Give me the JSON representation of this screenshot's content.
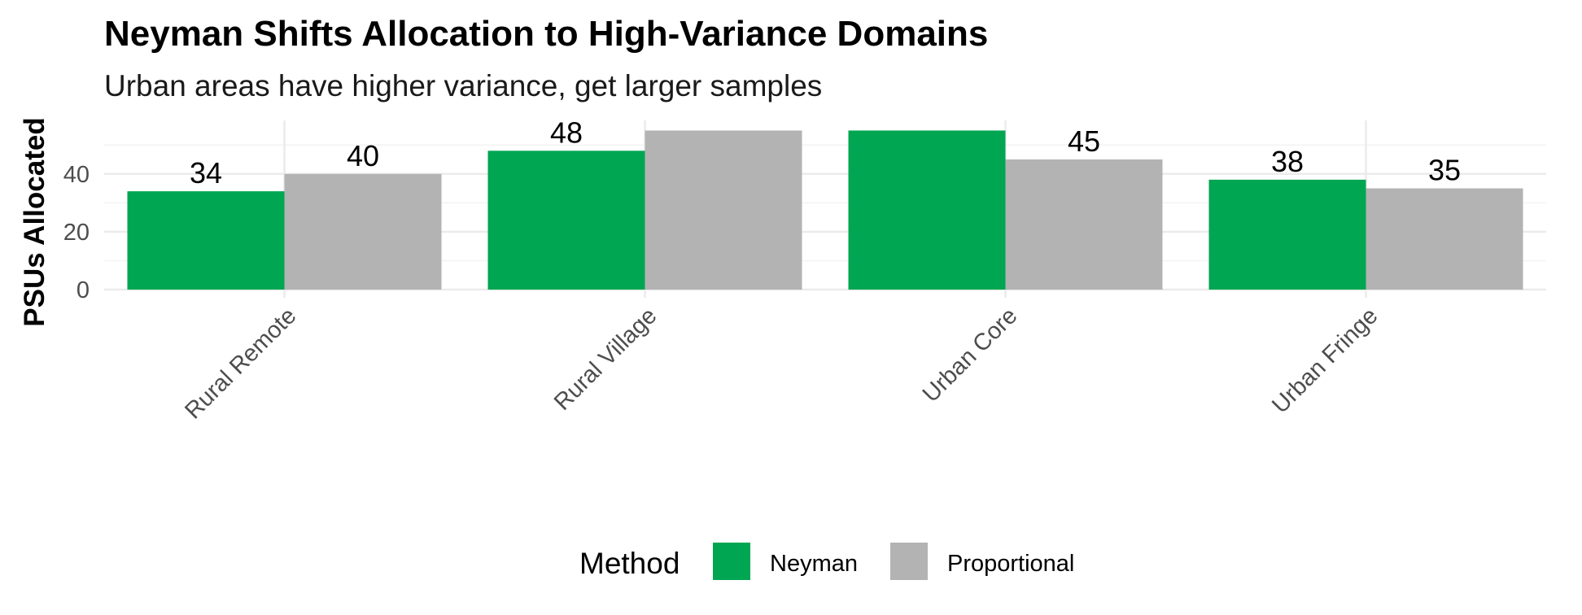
{
  "chart_data": {
    "type": "bar",
    "title": "Neyman Shifts Allocation to High-Variance Domains",
    "subtitle": "Urban areas have higher variance, get larger samples",
    "xlabel": "",
    "ylabel": "PSUs Allocated",
    "categories": [
      "Rural Remote",
      "Rural Village",
      "Urban Core",
      "Urban Fringe"
    ],
    "series": [
      {
        "name": "Neyman",
        "color": "#00a651",
        "values": [
          34,
          48,
          55,
          38
        ],
        "labels": [
          "34",
          "48",
          "",
          "38"
        ]
      },
      {
        "name": "Proportional",
        "color": "#b3b3b3",
        "values": [
          40,
          55,
          45,
          35
        ],
        "labels": [
          "40",
          "",
          "45",
          "35"
        ]
      }
    ],
    "yticks": [
      0,
      20,
      40
    ],
    "ytick_labels": [
      "0",
      "20",
      "40"
    ],
    "ylim": [
      0,
      58.5
    ],
    "grid": true,
    "legend": {
      "title": "Method",
      "position": "bottom"
    }
  }
}
